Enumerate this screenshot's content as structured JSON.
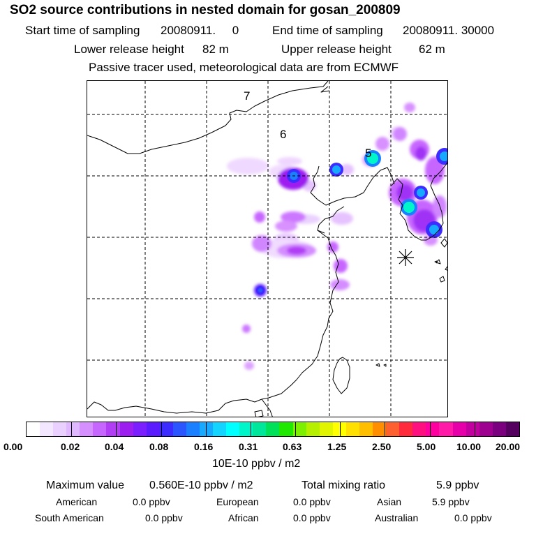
{
  "header": {
    "title": "SO2 source contributions in nested domain for gosan_200809",
    "start_label": "Start time of sampling",
    "start_value": "20080911.     0",
    "end_label": "End time of sampling",
    "end_value": "20080911. 30000",
    "lower_label": "Lower release height",
    "lower_value": "82 m",
    "upper_label": "Upper release height",
    "upper_value": "62 m",
    "note": "Passive tracer used, meteorological data are from ECMWF"
  },
  "map": {
    "labels": [
      "7",
      "6",
      "5"
    ],
    "release_marker": "asterisk-marker"
  },
  "colorbar": {
    "colors": [
      "#ffffff",
      "#f3e6ff",
      "#e9d0ff",
      "#dfb8ff",
      "#d58fff",
      "#c766ff",
      "#b13df5",
      "#9d1ff0",
      "#7c1fff",
      "#5a1cff",
      "#3d2cff",
      "#2a55ff",
      "#1b80ff",
      "#17a9ff",
      "#13d3ff",
      "#00ffff",
      "#00f5c8",
      "#00e69b",
      "#00e15a",
      "#20e800",
      "#7cf000",
      "#b6f000",
      "#e2f500",
      "#ffff00",
      "#ffe000",
      "#ffbf00",
      "#ff8f00",
      "#ff6030",
      "#ff2a3c",
      "#ff1080",
      "#ff00a0",
      "#ff1aa8",
      "#e600aa",
      "#c200a0",
      "#9e0090",
      "#7a0080",
      "#550060"
    ],
    "tick_labels": [
      "0.00",
      "0.02",
      "0.04",
      "0.08",
      "0.16",
      "0.31",
      "0.63",
      "1.25",
      "2.50",
      "5.00",
      "10.00",
      "20.00"
    ],
    "unit": "10E-10 ppbv / m2"
  },
  "footer": {
    "max_label": "Maximum value",
    "max_value": "0.560E-10 ppbv / m2",
    "total_label": "Total mixing ratio",
    "total_value": "5.9 ppbv",
    "regions": [
      {
        "name": "American",
        "value": "0.0 ppbv"
      },
      {
        "name": "European",
        "value": "0.0 ppbv"
      },
      {
        "name": "Asian",
        "value": "5.9 ppbv"
      },
      {
        "name": "South American",
        "value": "0.0 ppbv"
      },
      {
        "name": "African",
        "value": "0.0 ppbv"
      },
      {
        "name": "Australian",
        "value": "0.0 ppbv"
      }
    ]
  }
}
